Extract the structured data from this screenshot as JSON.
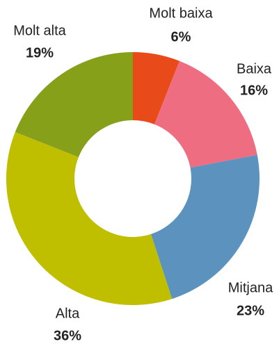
{
  "chart_data": {
    "type": "pie",
    "categories": [
      "Molt baixa",
      "Baixa",
      "Mitjana",
      "Alta",
      "Molt alta"
    ],
    "values": [
      6,
      16,
      23,
      36,
      19
    ],
    "value_labels": [
      "6%",
      "16%",
      "23%",
      "36%",
      "19%"
    ],
    "colors": [
      "#e84a1a",
      "#ee6d80",
      "#5b93be",
      "#bfbf00",
      "#87a01a"
    ],
    "donut": true
  }
}
